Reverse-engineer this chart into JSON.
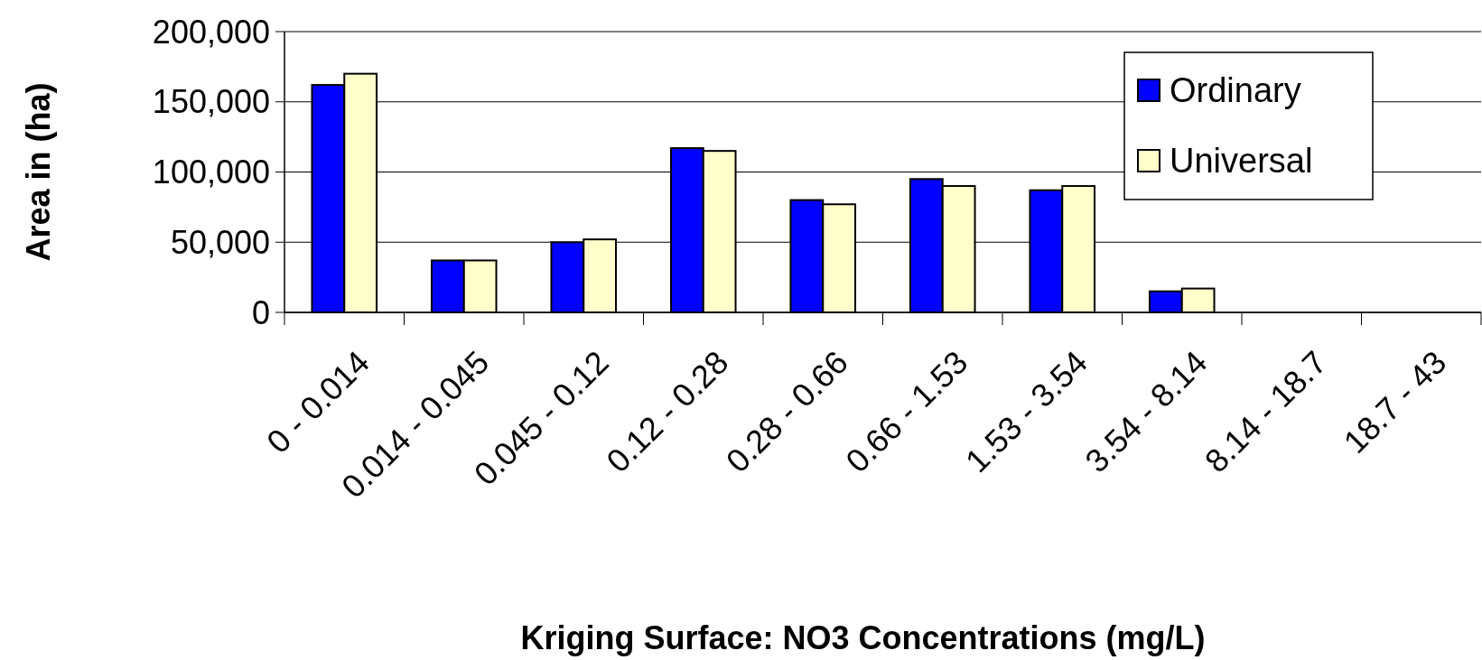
{
  "chart_data": {
    "type": "bar",
    "xlabel": "Kriging Surface: NO3 Concentrations (mg/L)",
    "ylabel": "Area in (ha)",
    "categories": [
      "0 - 0.014",
      "0.014 - 0.045",
      "0.045 - 0.12",
      "0.12 - 0.28",
      "0.28 - 0.66",
      "0.66 - 1.53",
      "1.53 - 3.54",
      "3.54 - 8.14",
      "8.14 - 18.7",
      "18.7 - 43"
    ],
    "series": [
      {
        "name": "Ordinary",
        "color": "#0000ff",
        "values": [
          162000,
          37000,
          50000,
          117000,
          80000,
          95000,
          87000,
          15000,
          0,
          0
        ]
      },
      {
        "name": "Universal",
        "color": "#ffffcc",
        "values": [
          170000,
          37000,
          52000,
          115000,
          77000,
          90000,
          90000,
          17000,
          0,
          0
        ]
      }
    ],
    "ylim": [
      0,
      200000
    ],
    "yticks": [
      {
        "value": 0,
        "label": "0"
      },
      {
        "value": 50000,
        "label": "50,000"
      },
      {
        "value": 100000,
        "label": "100,000"
      },
      {
        "value": 150000,
        "label": "150,000"
      },
      {
        "value": 200000,
        "label": "200,000"
      }
    ],
    "grid": "y",
    "legend": "top right"
  }
}
